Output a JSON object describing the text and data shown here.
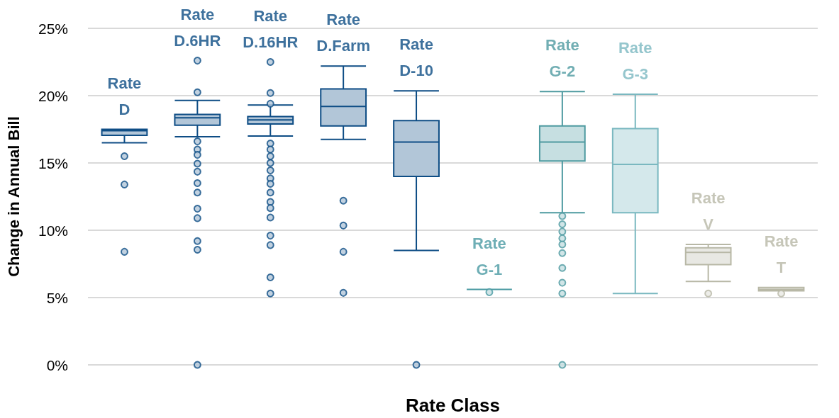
{
  "chart_data": {
    "type": "box",
    "xlabel": "Rate Class",
    "ylabel": "Change in Annual Bill",
    "categories": [
      "Rate D",
      "Rate D.6HR",
      "Rate D.16HR",
      "Rate D.Farm",
      "Rate D-10",
      "Rate G-1",
      "Rate G-2",
      "Rate G-3",
      "Rate V",
      "Rate T"
    ],
    "colors": [
      "#0e4d85",
      "#0e4d85",
      "#0e4d85",
      "#0e4d85",
      "#0e4d85",
      "#4a9aa2",
      "#4e9aa0",
      "#7ab8c0",
      "#b8b8a6",
      "#b8b8a6"
    ],
    "boxes": [
      {
        "low": 16.5,
        "q1": 17.05,
        "median": 17.4,
        "q3": 17.5,
        "high": 17.5,
        "outliers": [
          15.5,
          13.4,
          8.4
        ]
      },
      {
        "low": 16.95,
        "q1": 17.8,
        "median": 18.35,
        "q3": 18.6,
        "high": 19.65,
        "outliers": [
          22.6,
          20.25,
          16.6,
          16.0,
          15.6,
          14.95,
          14.35,
          13.5,
          12.8,
          11.6,
          10.9,
          9.2,
          8.55,
          0
        ]
      },
      {
        "low": 17.0,
        "q1": 17.9,
        "median": 18.2,
        "q3": 18.45,
        "high": 19.3,
        "outliers": [
          22.5,
          20.2,
          19.4,
          16.45,
          16.0,
          15.5,
          15.0,
          14.45,
          13.85,
          13.45,
          12.8,
          12.1,
          11.65,
          10.95,
          9.6,
          8.9,
          6.5,
          5.3
        ]
      },
      {
        "low": 16.75,
        "q1": 17.75,
        "median": 19.2,
        "q3": 20.5,
        "high": 22.2,
        "outliers": [
          12.2,
          10.35,
          8.4,
          5.35
        ]
      },
      {
        "low": 8.5,
        "q1": 14.0,
        "median": 16.55,
        "q3": 18.15,
        "high": 20.35,
        "outliers": [
          0
        ]
      },
      {
        "low": 5.6,
        "q1": 5.6,
        "median": 5.6,
        "q3": 5.6,
        "high": 5.6,
        "outliers": [
          5.4
        ]
      },
      {
        "low": 11.3,
        "q1": 15.15,
        "median": 16.55,
        "q3": 17.75,
        "high": 20.3,
        "outliers": [
          11.05,
          10.45,
          9.9,
          9.4,
          8.95,
          8.3,
          7.2,
          6.1,
          5.3,
          0
        ]
      },
      {
        "low": 5.3,
        "q1": 11.3,
        "median": 14.9,
        "q3": 17.55,
        "high": 20.1
      },
      {
        "low": 6.2,
        "q1": 7.45,
        "median": 8.35,
        "q3": 8.7,
        "high": 8.95,
        "outliers": [
          5.3
        ]
      },
      {
        "low": 5.5,
        "q1": 5.5,
        "median": 5.6,
        "q3": 5.75,
        "high": 5.75,
        "outliers": [
          5.3
        ]
      }
    ],
    "ylim": [
      0,
      25
    ],
    "yticks": [
      {
        "value": 0,
        "label": "0%"
      },
      {
        "value": 5,
        "label": "5%"
      },
      {
        "value": 10,
        "label": "10%"
      },
      {
        "value": 15,
        "label": "15%"
      },
      {
        "value": 20,
        "label": "20%"
      },
      {
        "value": 25,
        "label": "25%"
      }
    ],
    "grid": "y"
  }
}
